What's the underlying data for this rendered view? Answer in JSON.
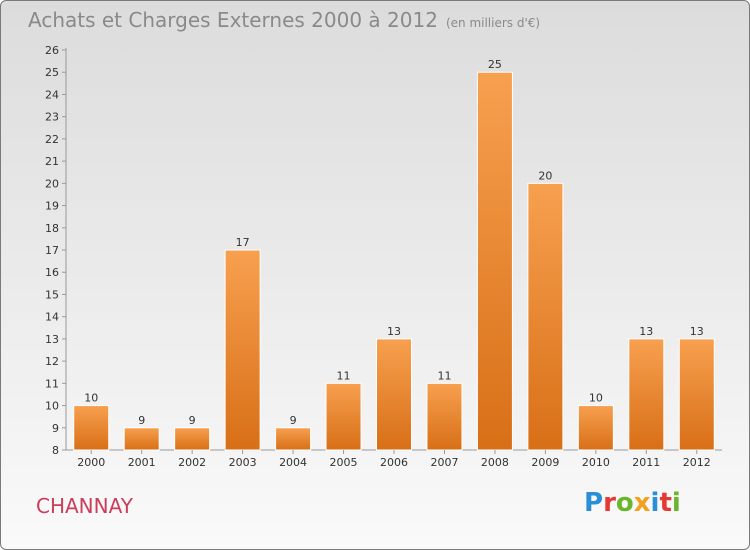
{
  "header": {
    "title": "Achats et Charges Externes 2000 à 2012",
    "subtitle": "(en milliers d'€)"
  },
  "footer": {
    "commune": "CHANNAY",
    "logo": "Proxiti"
  },
  "colors": {
    "bar_light": "#f7a04f",
    "bar_dark": "#d86f17",
    "commune": "#cc3d5a"
  },
  "chart_data": {
    "type": "bar",
    "title": "Achats et Charges Externes 2000 à 2012",
    "subtitle": "(en milliers d'€)",
    "categories": [
      "2000",
      "2001",
      "2002",
      "2003",
      "2004",
      "2005",
      "2006",
      "2007",
      "2008",
      "2009",
      "2010",
      "2011",
      "2012"
    ],
    "values": [
      10,
      9,
      9,
      17,
      9,
      11,
      13,
      11,
      25,
      20,
      10,
      13,
      13
    ],
    "xlabel": "",
    "ylabel": "",
    "ylim": [
      8,
      26
    ],
    "yticks": [
      8,
      9,
      10,
      11,
      12,
      13,
      14,
      15,
      16,
      17,
      18,
      19,
      20,
      21,
      22,
      23,
      24,
      25,
      26
    ],
    "grid": false,
    "legend": "none"
  }
}
